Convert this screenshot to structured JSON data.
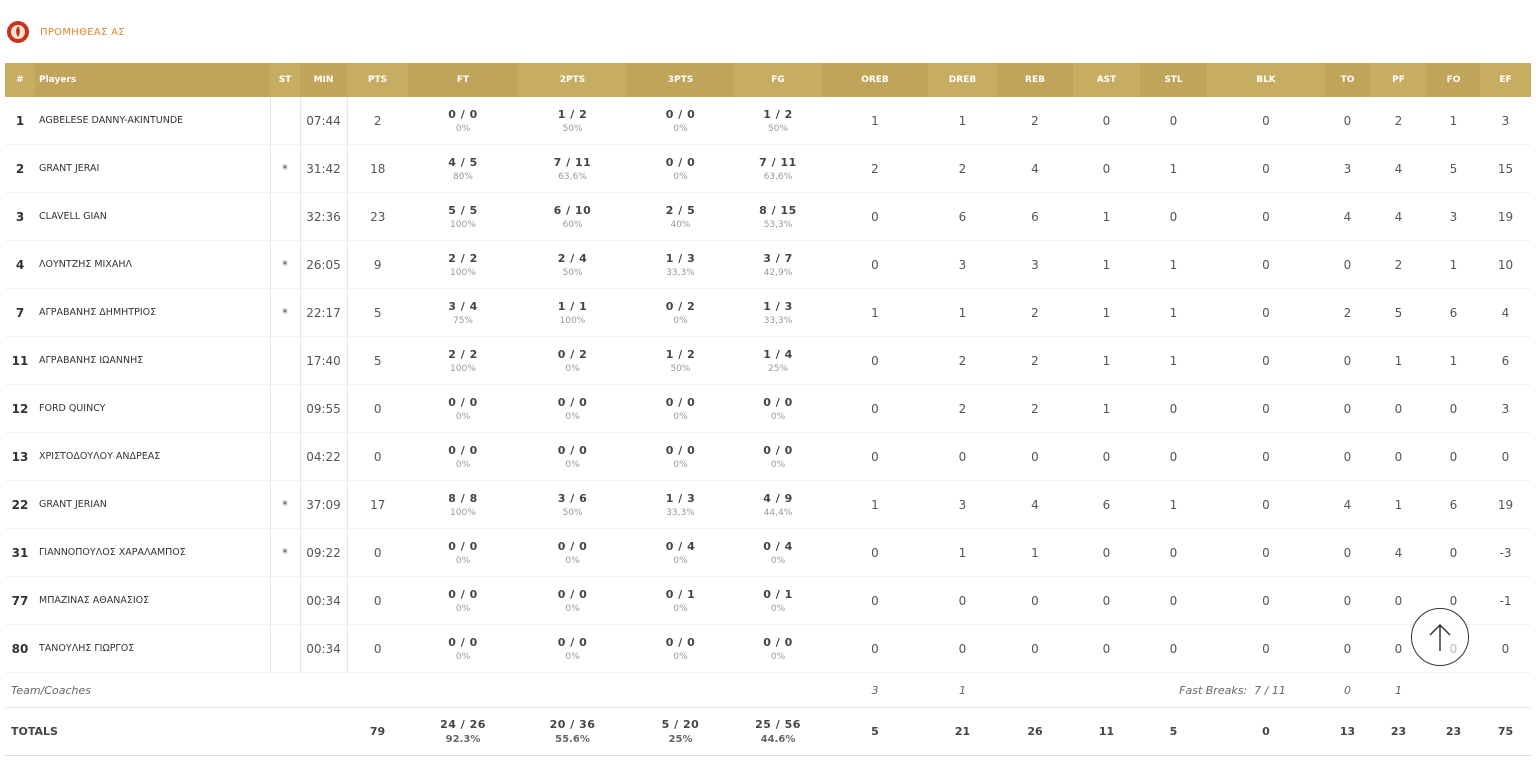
{
  "team": {
    "name": "ΠΡΟΜΗΘΕΑΣ ΑΣ"
  },
  "table": {
    "headers": [
      "#",
      "Players",
      "ST",
      "MIN",
      "PTS",
      "FT",
      "2PTS",
      "3PTS",
      "FG",
      "OREB",
      "DREB",
      "REB",
      "AST",
      "STL",
      "BLK",
      "TO",
      "PF",
      "FO",
      "EF"
    ],
    "rows": [
      [
        1,
        "AGBELESE DANNY-AKINTUNDE",
        null,
        "07:44",
        2,
        "0 / 0",
        "0%",
        "1 / 2",
        "50%",
        "0 / 0",
        "0%",
        "1 / 2",
        "50%",
        1,
        1,
        2,
        0,
        0,
        0,
        0,
        2,
        1,
        3
      ],
      [
        2,
        "GRANT JERAI",
        "*",
        "31:42",
        18,
        "4 / 5",
        "80%",
        "7 / 11",
        "63,6%",
        "0 / 0",
        "0%",
        "7 / 11",
        "63,6%",
        2,
        2,
        4,
        0,
        1,
        0,
        3,
        4,
        5,
        15
      ],
      [
        3,
        "CLAVELL GIAN",
        null,
        "32:36",
        23,
        "5 / 5",
        "100%",
        "6 / 10",
        "60%",
        "2 / 5",
        "40%",
        "8 / 15",
        "53,3%",
        0,
        6,
        6,
        1,
        0,
        0,
        4,
        4,
        3,
        19
      ],
      [
        4,
        "ΛΟΥΝΤΖΗΣ ΜΙΧΑΗΛ",
        "*",
        "26:05",
        9,
        "2 / 2",
        "100%",
        "2 / 4",
        "50%",
        "1 / 3",
        "33,3%",
        "3 / 7",
        "42,9%",
        0,
        3,
        3,
        1,
        1,
        0,
        0,
        2,
        1,
        10
      ],
      [
        7,
        "ΑΓΡΑΒΑΝΗΣ ΔΗΜΗΤΡΙΟΣ",
        "*",
        "22:17",
        5,
        "3 / 4",
        "75%",
        "1 / 1",
        "100%",
        "0 / 2",
        "0%",
        "1 / 3",
        "33,3%",
        1,
        1,
        2,
        1,
        1,
        0,
        2,
        5,
        6,
        4
      ],
      [
        11,
        "ΑΓΡΑΒΑΝΗΣ ΙΩΑΝΝΗΣ",
        null,
        "17:40",
        5,
        "2 / 2",
        "100%",
        "0 / 2",
        "0%",
        "1 / 2",
        "50%",
        "1 / 4",
        "25%",
        0,
        2,
        2,
        1,
        1,
        0,
        0,
        1,
        1,
        6
      ],
      [
        12,
        "FORD QUINCY",
        null,
        "09:55",
        0,
        "0 / 0",
        "0%",
        "0 / 0",
        "0%",
        "0 / 0",
        "0%",
        "0 / 0",
        "0%",
        0,
        2,
        2,
        1,
        0,
        0,
        0,
        0,
        0,
        3
      ],
      [
        13,
        "ΧΡΙΣΤΟΔΟΥΛΟΥ ΑΝΔΡΕΑΣ",
        null,
        "04:22",
        0,
        "0 / 0",
        "0%",
        "0 / 0",
        "0%",
        "0 / 0",
        "0%",
        "0 / 0",
        "0%",
        0,
        0,
        0,
        0,
        0,
        0,
        0,
        0,
        0,
        0
      ],
      [
        22,
        "GRANT JERIAN",
        "*",
        "37:09",
        17,
        "8 / 8",
        "100%",
        "3 / 6",
        "50%",
        "1 / 3",
        "33,3%",
        "4 / 9",
        "44,4%",
        1,
        3,
        4,
        6,
        1,
        0,
        4,
        1,
        6,
        19
      ],
      [
        31,
        "ΓΙΑΝΝΟΠΟΥΛΟΣ ΧΑΡΑΛΑΜΠΟΣ",
        "*",
        "09:22",
        0,
        "0 / 0",
        "0%",
        "0 / 0",
        "0%",
        "0 / 4",
        "0%",
        "0 / 4",
        "0%",
        0,
        1,
        1,
        0,
        0,
        0,
        0,
        4,
        0,
        -3
      ],
      [
        77,
        "ΜΠΑΖΙΝΑΣ ΑΘΑΝΑΣΙΟΣ",
        null,
        "00:34",
        0,
        "0 / 0",
        "0%",
        "0 / 0",
        "0%",
        "0 / 1",
        "0%",
        "0 / 1",
        "0%",
        0,
        0,
        0,
        0,
        0,
        0,
        0,
        0,
        0,
        -1
      ],
      [
        80,
        "ΤΑΝΟΥΛΗΣ ΓΙΩΡΓΟΣ",
        null,
        "00:34",
        0,
        "0 / 0",
        "0%",
        "0 / 0",
        "0%",
        "0 / 0",
        "0%",
        "0 / 0",
        "0%",
        0,
        0,
        0,
        0,
        0,
        0,
        0,
        0,
        0,
        0
      ]
    ],
    "team_row": {
      "label": "Team/Coaches",
      "oreb": 3,
      "dreb": 1,
      "fast_breaks_label": "Fast Breaks:",
      "fast_breaks": "7 / 11",
      "to": 0,
      "pf": 1
    },
    "totals": {
      "label": "TOTALS",
      "values": [
        79,
        "24 / 26",
        "92.3%",
        "20 / 36",
        "55.6%",
        "5 / 20",
        "25%",
        "25 / 56",
        "44.6%",
        5,
        21,
        26,
        11,
        5,
        0,
        13,
        23,
        23,
        75
      ]
    }
  }
}
